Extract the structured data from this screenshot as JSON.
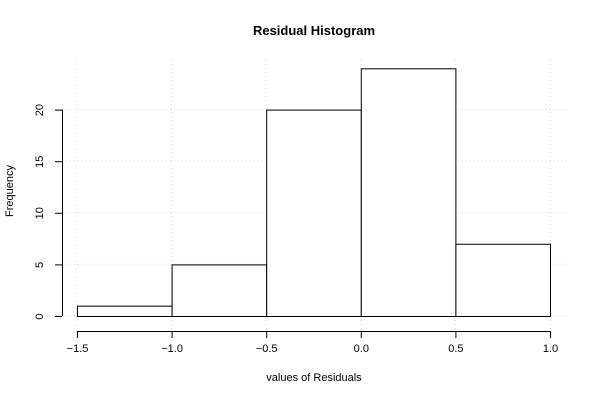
{
  "chart_data": {
    "type": "bar",
    "title": "Residual Histogram",
    "xlabel": "values of Residuals",
    "ylabel": "Frequency",
    "bins": [
      {
        "from": -1.5,
        "to": -1.0,
        "count": 1
      },
      {
        "from": -1.0,
        "to": -0.5,
        "count": 5
      },
      {
        "from": -0.5,
        "to": 0.0,
        "count": 20
      },
      {
        "from": 0.0,
        "to": 0.5,
        "count": 24
      },
      {
        "from": 0.5,
        "to": 1.0,
        "count": 7
      }
    ],
    "xlim": [
      -1.5,
      1.0
    ],
    "ylim": [
      0,
      25
    ],
    "xticks": [
      "-1.5",
      "-1.0",
      "-0.5",
      "0.0",
      "0.5",
      "1.0"
    ],
    "yticks": [
      "0",
      "5",
      "10",
      "15",
      "20"
    ],
    "grid": true,
    "colors": {
      "bar_fill": "#ffffff",
      "bar_stroke": "#000000",
      "grid": "#d8d8d8"
    }
  }
}
